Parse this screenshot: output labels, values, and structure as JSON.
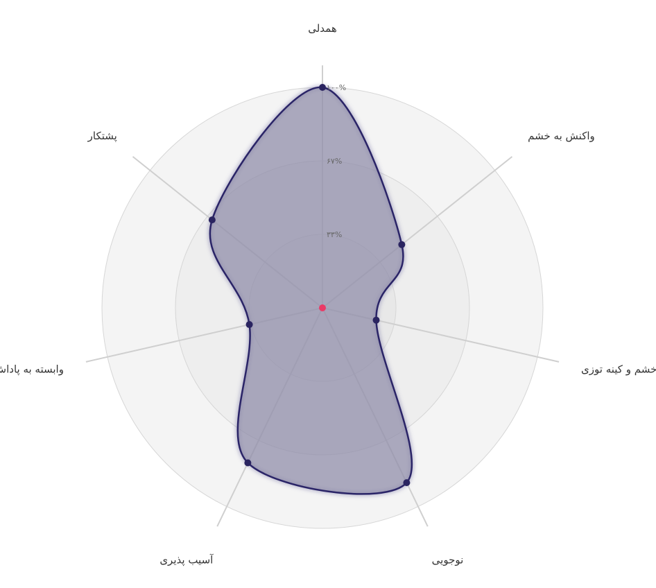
{
  "chart_data": {
    "type": "radar",
    "axes": [
      "همدلی",
      "واکنش به خشم",
      "خشم و کینه توزی",
      "نوجویی",
      "آسیب پذیری",
      "وابسته به پاداش",
      "پشتکار"
    ],
    "series": [
      {
        "values": [
          100,
          46,
          25,
          88,
          78,
          34,
          64
        ]
      }
    ],
    "range": [
      0,
      100
    ],
    "ticks": [
      "۳۳%",
      "۶۷%",
      "۱۰۰%"
    ],
    "grid": true,
    "legend": "none",
    "colors": {
      "fill": "#8d8aa8",
      "stroke": "#2a2467",
      "point": "#2a2460",
      "center": "#ea3a66",
      "axis": "#cfcfcf",
      "ring_outer": "#f4f4f4",
      "ring_mid": "#eeeeee",
      "ring_inner": "#e8e8e8"
    }
  }
}
